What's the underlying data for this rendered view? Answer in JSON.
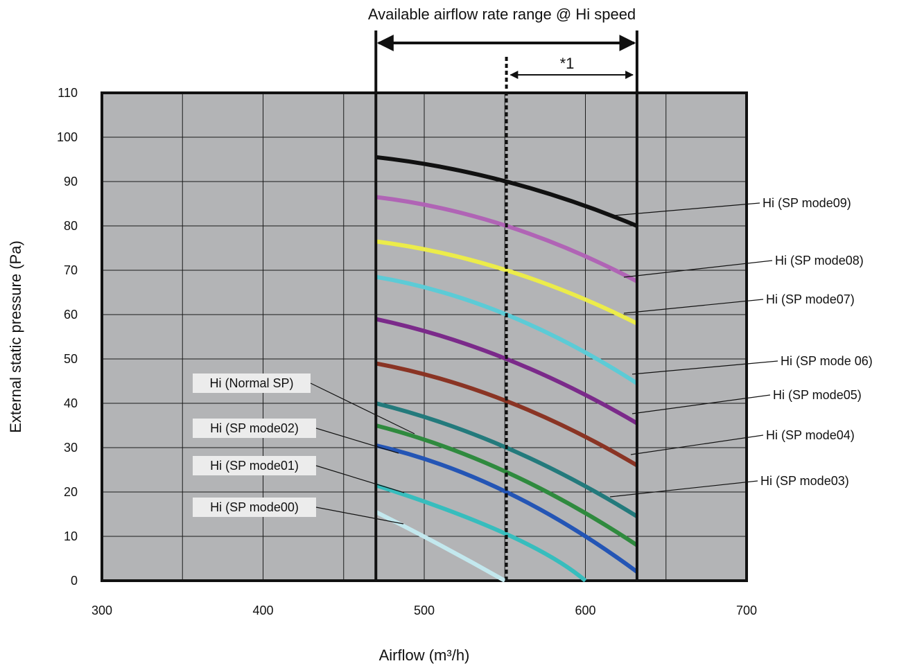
{
  "chart_data": {
    "type": "line",
    "xlabel": "Airflow (m³/h)",
    "ylabel": "External static pressure (Pa)",
    "xlim": [
      300,
      700
    ],
    "ylim": [
      0,
      110
    ],
    "x_ticks": [
      300,
      400,
      500,
      600,
      700
    ],
    "y_ticks": [
      0,
      10,
      20,
      30,
      40,
      50,
      60,
      70,
      80,
      90,
      100,
      110
    ],
    "x_grid": [
      350,
      450,
      550,
      650
    ],
    "grid": true,
    "plot_background": "#b3b4b6",
    "range_annotation": {
      "label": "Available airflow rate range @ Hi speed",
      "from": 470,
      "to": 632
    },
    "marker_annotation": {
      "label": "*1",
      "x": 551,
      "to": 632
    },
    "series": [
      {
        "name": "Hi (SP mode09)",
        "color": "#111111",
        "x": [
          470,
          551,
          632
        ],
        "y": [
          95.5,
          90,
          80
        ]
      },
      {
        "name": "Hi (SP mode08)",
        "color": "#b064b5",
        "x": [
          470,
          551,
          632
        ],
        "y": [
          86.5,
          80,
          67.5
        ]
      },
      {
        "name": "Hi (SP mode07)",
        "color": "#ecec4a",
        "x": [
          470,
          551,
          632
        ],
        "y": [
          76.5,
          70,
          58
        ]
      },
      {
        "name": "Hi (SP mode 06)",
        "color": "#5ccbd6",
        "x": [
          470,
          551,
          632
        ],
        "y": [
          68.5,
          60,
          44.5
        ]
      },
      {
        "name": "Hi (SP mode05)",
        "color": "#7b2a8a",
        "x": [
          470,
          551,
          632
        ],
        "y": [
          59,
          50,
          35.5
        ]
      },
      {
        "name": "Hi (SP mode04)",
        "color": "#8a3424",
        "x": [
          470,
          551,
          632
        ],
        "y": [
          49,
          40.5,
          26
        ]
      },
      {
        "name": "Hi (SP mode03)",
        "color": "#237a7c",
        "x": [
          470,
          551,
          632
        ],
        "y": [
          40,
          30,
          14.5
        ]
      },
      {
        "name": "Hi (Normal SP)",
        "color": "#2f8a3e",
        "x": [
          470,
          551,
          632
        ],
        "y": [
          35,
          24.5,
          8
        ]
      },
      {
        "name": "Hi (SP mode02)",
        "color": "#2455b5",
        "x": [
          470,
          551,
          632
        ],
        "y": [
          30.5,
          20,
          2
        ]
      },
      {
        "name": "Hi (SP mode01)",
        "color": "#37bdbd",
        "x": [
          470,
          551,
          600
        ],
        "y": [
          21.5,
          10.5,
          0
        ]
      },
      {
        "name": "Hi (SP mode00)",
        "color": "#c3e8ee",
        "x": [
          470,
          510,
          550
        ],
        "y": [
          15.5,
          8,
          0
        ]
      }
    ]
  }
}
